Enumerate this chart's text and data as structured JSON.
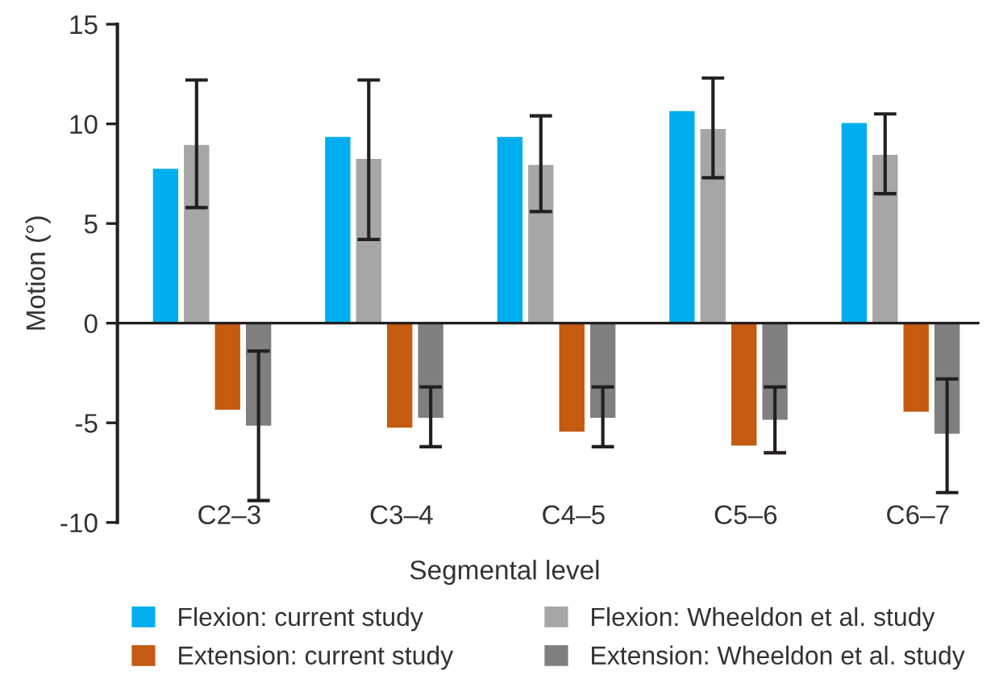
{
  "chart_data": {
    "type": "bar",
    "ylabel": "Motion (°)",
    "xlabel": "Segmental level",
    "categories": [
      "C2–3",
      "C3–4",
      "C4–5",
      "C5–6",
      "C6–7"
    ],
    "series": [
      {
        "name": "Flexion: current study",
        "color": "#00aeef",
        "values": [
          7.8,
          9.4,
          9.4,
          10.7,
          10.1
        ]
      },
      {
        "name": "Flexion: Wheeldon et al. study",
        "color": "#a6a6a6",
        "values": [
          9.0,
          8.3,
          8.0,
          9.8,
          8.5
        ],
        "errors": [
          [
            5.8,
            12.2
          ],
          [
            4.2,
            12.2
          ],
          [
            5.6,
            10.4
          ],
          [
            7.3,
            12.3
          ],
          [
            6.5,
            10.5
          ]
        ]
      },
      {
        "name": "Extension: current study",
        "color": "#c55a11",
        "values": [
          -4.4,
          -5.3,
          -5.5,
          -6.2,
          -4.5
        ]
      },
      {
        "name": "Extension: Wheeldon et al. study",
        "color": "#7f7f7f",
        "values": [
          -5.2,
          -4.8,
          -4.8,
          -4.9,
          -5.6
        ],
        "errors": [
          [
            -8.9,
            -1.4
          ],
          [
            -6.2,
            -3.2
          ],
          [
            -6.2,
            -3.2
          ],
          [
            -6.5,
            -3.2
          ],
          [
            -8.5,
            -2.8
          ]
        ]
      }
    ],
    "ylim": [
      -10,
      15
    ],
    "yticks": [
      -10,
      -5,
      0,
      5,
      10,
      15
    ],
    "legend": "bottom"
  }
}
